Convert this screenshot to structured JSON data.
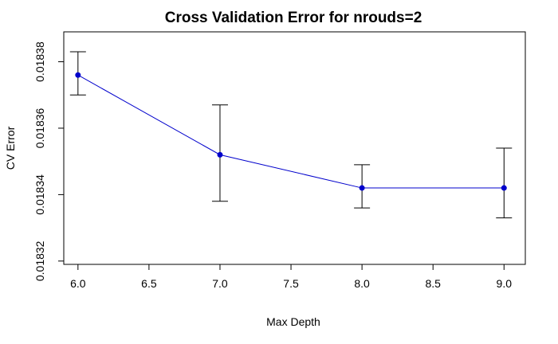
{
  "chart_data": {
    "type": "line",
    "title": "Cross Validation Error for nrouds=2",
    "xlabel": "Max Depth",
    "ylabel": "CV Error",
    "x": [
      6.0,
      7.0,
      8.0,
      9.0
    ],
    "series": [
      {
        "values": [
          0.018376,
          0.018352,
          0.018342,
          0.018342
        ],
        "error_low": [
          0.01837,
          0.018338,
          0.018336,
          0.018333
        ],
        "error_high": [
          0.018383,
          0.018367,
          0.018349,
          0.018354
        ]
      }
    ],
    "xlim": [
      5.9,
      9.15
    ],
    "ylim": [
      0.018319,
      0.018389
    ],
    "x_ticks": [
      6.0,
      6.5,
      7.0,
      7.5,
      8.0,
      8.5,
      9.0
    ],
    "x_tick_labels": [
      "6.0",
      "6.5",
      "7.0",
      "7.5",
      "8.0",
      "8.5",
      "9.0"
    ],
    "y_ticks": [
      0.01832,
      0.01834,
      0.01836,
      0.01838
    ],
    "y_tick_labels": [
      "0.01832",
      "0.01834",
      "0.01836",
      "0.01838"
    ],
    "grid": false,
    "colors": {
      "line": "#0000cc",
      "points": "#0000cc",
      "error_bars": "#000000",
      "axes": "#000000"
    }
  }
}
